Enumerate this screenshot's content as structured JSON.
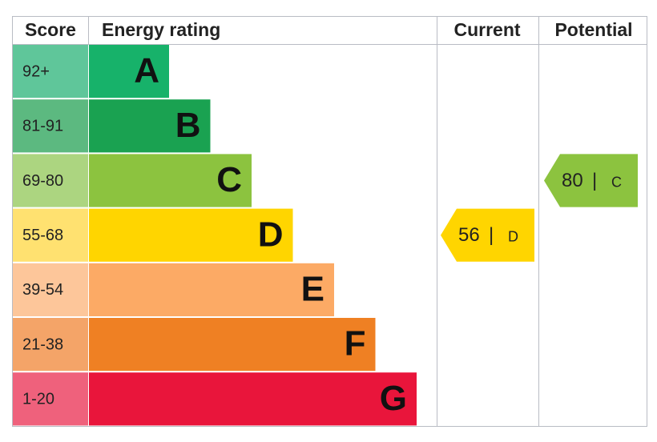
{
  "header": {
    "score": "Score",
    "rating": "Energy rating",
    "current": "Current",
    "potential": "Potential"
  },
  "bands": [
    {
      "score": "92+",
      "letter": "A",
      "color": "#17b26a",
      "score_color": "#5fc69a"
    },
    {
      "score": "81-91",
      "letter": "B",
      "color": "#1aa251",
      "score_color": "#5cb980"
    },
    {
      "score": "69-80",
      "letter": "C",
      "color": "#8cc33f",
      "score_color": "#acd580"
    },
    {
      "score": "55-68",
      "letter": "D",
      "color": "#ffd500",
      "score_color": "#ffe170"
    },
    {
      "score": "39-54",
      "letter": "E",
      "color": "#fcaa65",
      "score_color": "#fdc69a"
    },
    {
      "score": "21-38",
      "letter": "F",
      "color": "#ef8023",
      "score_color": "#f4a468"
    },
    {
      "score": "1-20",
      "letter": "G",
      "color": "#e9153b",
      "score_color": "#ef617c"
    }
  ],
  "current": {
    "score": 56,
    "separator": "|",
    "rating": "D"
  },
  "potential": {
    "score": 80,
    "separator": "|",
    "rating": "C"
  }
}
